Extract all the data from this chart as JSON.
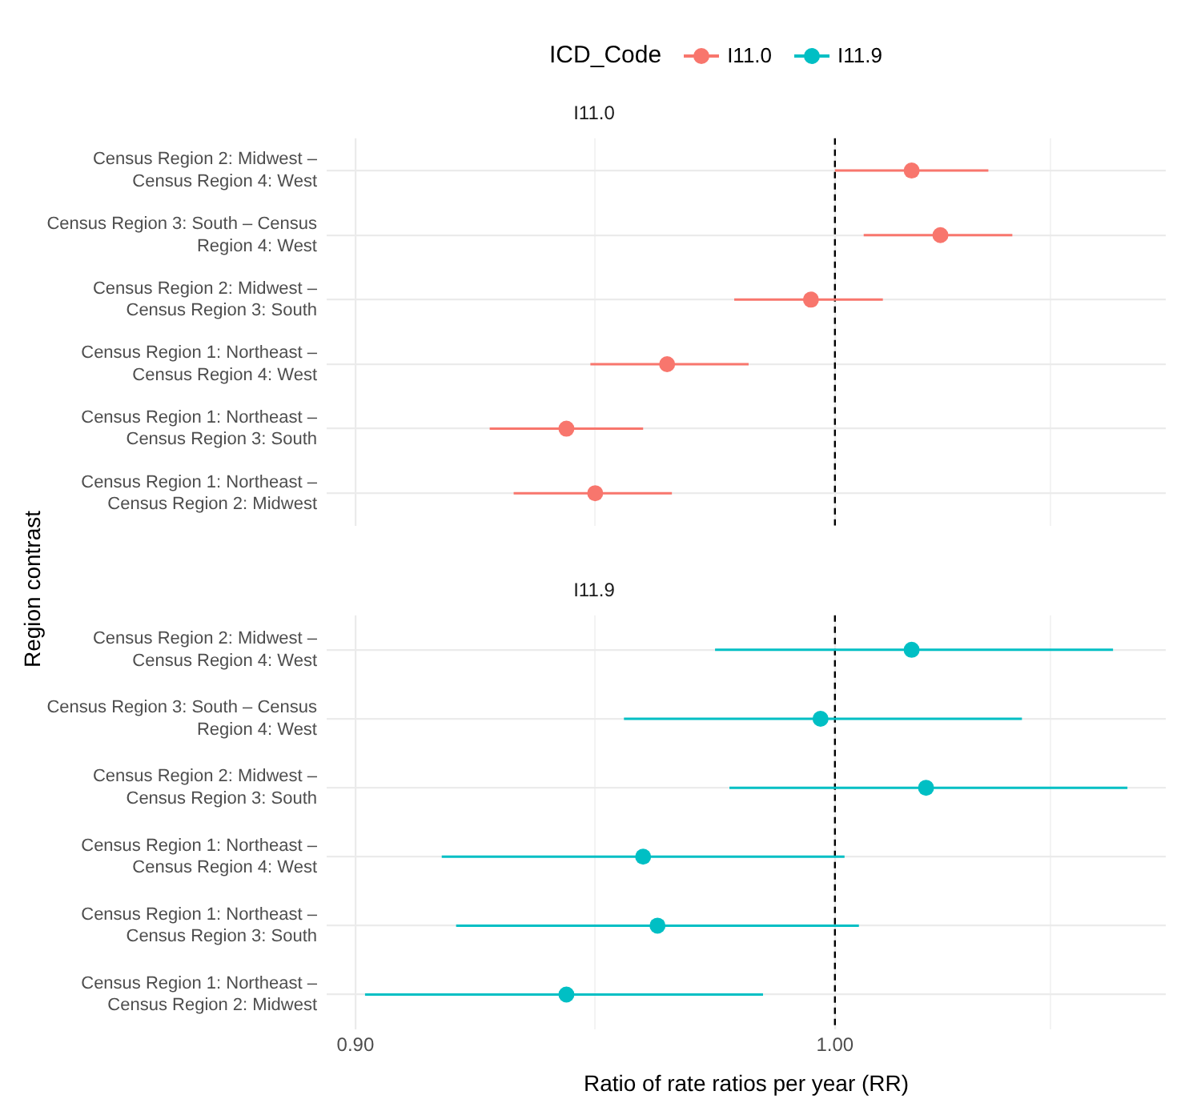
{
  "chart_data": [
    {
      "type": "scatter",
      "orientation": "horizontal",
      "title": "I11.0",
      "ylabel": "Region contrast",
      "legend_title": "ICD_Code",
      "legend": "top",
      "grid": true,
      "marker": "circle",
      "tick_labels": "y",
      "categories": [
        "Census Region 2: Midwest – Census Region 4: West",
        "Census Region 3: South – Census Region 4: West",
        "Census Region 2: Midwest – Census Region 3: South",
        "Census Region 1: Northeast – Census Region 4: West",
        "Census Region 1: Northeast – Census Region 3: South",
        "Census Region 1: Northeast – Census Region 2: Midwest"
      ],
      "xlim": [
        0.894,
        1.069
      ],
      "xticks": [
        {
          "value": 0.9,
          "label": null
        },
        {
          "value": 0.95,
          "label": null
        },
        {
          "value": 1.0,
          "label": null
        },
        {
          "value": 1.045,
          "label": null
        }
      ],
      "ref_lines": [
        {
          "axis": "x",
          "value": 1.0,
          "color": "#000000",
          "line_style": "dashed"
        }
      ],
      "series": [
        {
          "name": "I11.0",
          "color": "#f8766d",
          "values": [
            1.016,
            1.022,
            0.995,
            0.965,
            0.944,
            0.95
          ],
          "errors": [
            [
              1.0,
              1.032
            ],
            [
              1.006,
              1.037
            ],
            [
              0.979,
              1.01
            ],
            [
              0.949,
              0.982
            ],
            [
              0.928,
              0.96
            ],
            [
              0.933,
              0.966
            ]
          ]
        }
      ]
    },
    {
      "type": "scatter",
      "orientation": "horizontal",
      "title": "I11.9",
      "xlabel": "Ratio of rate ratios per year (RR)",
      "legend": "top",
      "grid": true,
      "marker": "circle",
      "categories": [
        "Census Region 2: Midwest – Census Region 4: West",
        "Census Region 3: South – Census Region 4: West",
        "Census Region 2: Midwest – Census Region 3: South",
        "Census Region 1: Northeast – Census Region 4: West",
        "Census Region 1: Northeast – Census Region 3: South",
        "Census Region 1: Northeast – Census Region 2: Midwest"
      ],
      "xlim": [
        0.894,
        1.069
      ],
      "xticks": [
        {
          "value": 0.9,
          "label": "0.90"
        },
        {
          "value": 0.95,
          "label": null
        },
        {
          "value": 1.0,
          "label": "1.00"
        },
        {
          "value": 1.045,
          "label": null
        }
      ],
      "ref_lines": [
        {
          "axis": "x",
          "value": 1.0,
          "color": "#000000",
          "line_style": "dashed"
        }
      ],
      "series": [
        {
          "name": "I11.9",
          "color": "#00bfc4",
          "values": [
            1.016,
            0.997,
            1.019,
            0.96,
            0.963,
            0.944
          ],
          "errors": [
            [
              0.975,
              1.058
            ],
            [
              0.956,
              1.039
            ],
            [
              0.978,
              1.061
            ],
            [
              0.918,
              1.002
            ],
            [
              0.921,
              1.005
            ],
            [
              0.902,
              0.985
            ]
          ]
        }
      ]
    }
  ]
}
